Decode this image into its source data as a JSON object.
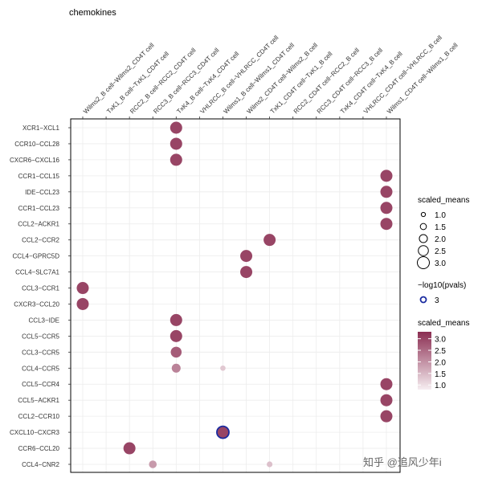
{
  "chart_data": {
    "type": "scatter",
    "title": "chemokines",
    "columns": [
      "Wilms2_B cell−Wilms2_CD4T cell",
      "TxK1_B cell−TxK1_CD4T cell",
      "RCC2_B cell−RCC2_CD4T cell",
      "RCC3_B cell−RCC3_CD4T cell",
      "TxK4_B cell−TxK4_CD4T cell",
      "VHLRCC_B cell−VHLRCC_CD4T cell",
      "Wilms1_B cell−Wilms1_CD4T cell",
      "Wilms2_CD4T cell−Wilms2_B cell",
      "TxK1_CD4T cell−TxK1_B cell",
      "RCC2_CD4T cell−RCC2_B cell",
      "RCC3_CD4T cell−RCC3_B cell",
      "TxK4_CD4T cell−TxK4_B cell",
      "VHLRCC_CD4T cell−VHLRCC_B cell",
      "Wilms1_CD4T cell−Wilms1_B cell"
    ],
    "rows": [
      "XCR1−XCL1",
      "CCR10−CCL28",
      "CXCR6−CXCL16",
      "CCR1−CCL15",
      "IDE−CCL23",
      "CCR1−CCL23",
      "CCL2−ACKR1",
      "CCL2−CCR2",
      "CCL4−GPRC5D",
      "CCL4−SLC7A1",
      "CCL3−CCR1",
      "CXCR3−CCL20",
      "CCL3−IDE",
      "CCL5−CCR5",
      "CCL3−CCR5",
      "CCL4−CCR5",
      "CCL5−CCR4",
      "CCL5−ACKR1",
      "CCL2−CCR10",
      "CXCL10−CXCR3",
      "CCR6−CCL20",
      "CCL4−CNR2"
    ],
    "points": [
      {
        "row": 0,
        "col": 4,
        "scaled_means": 3.0
      },
      {
        "row": 1,
        "col": 4,
        "scaled_means": 3.0
      },
      {
        "row": 2,
        "col": 4,
        "scaled_means": 3.0
      },
      {
        "row": 3,
        "col": 13,
        "scaled_means": 3.0
      },
      {
        "row": 4,
        "col": 13,
        "scaled_means": 3.0
      },
      {
        "row": 5,
        "col": 13,
        "scaled_means": 3.0
      },
      {
        "row": 6,
        "col": 13,
        "scaled_means": 3.0
      },
      {
        "row": 7,
        "col": 8,
        "scaled_means": 3.0
      },
      {
        "row": 8,
        "col": 7,
        "scaled_means": 3.0
      },
      {
        "row": 9,
        "col": 7,
        "scaled_means": 3.0
      },
      {
        "row": 10,
        "col": 0,
        "scaled_means": 3.0
      },
      {
        "row": 11,
        "col": 0,
        "scaled_means": 3.0
      },
      {
        "row": 12,
        "col": 4,
        "scaled_means": 3.0
      },
      {
        "row": 13,
        "col": 4,
        "scaled_means": 3.0
      },
      {
        "row": 14,
        "col": 4,
        "scaled_means": 2.7
      },
      {
        "row": 15,
        "col": 4,
        "scaled_means": 2.2
      },
      {
        "row": 15,
        "col": 6,
        "scaled_means": 1.3
      },
      {
        "row": 16,
        "col": 13,
        "scaled_means": 3.0
      },
      {
        "row": 17,
        "col": 13,
        "scaled_means": 3.0
      },
      {
        "row": 18,
        "col": 13,
        "scaled_means": 3.0
      },
      {
        "row": 19,
        "col": 6,
        "scaled_means": 3.0,
        "neg_log10_pvals": 3
      },
      {
        "row": 20,
        "col": 2,
        "scaled_means": 3.0
      },
      {
        "row": 21,
        "col": 3,
        "scaled_means": 1.9
      },
      {
        "row": 21,
        "col": 8,
        "scaled_means": 1.4
      }
    ],
    "legend_size": {
      "title": "scaled_means",
      "values": [
        "1.0",
        "1.5",
        "2.0",
        "2.5",
        "3.0"
      ]
    },
    "legend_pval": {
      "title": "−log10(pvals)",
      "values": [
        "3"
      ]
    },
    "legend_color": {
      "title": "scaled_means",
      "ticks": [
        "3.0",
        "2.5",
        "2.0",
        "1.5",
        "1.0"
      ],
      "range": [
        0.8,
        3.3
      ]
    },
    "colors": {
      "high": "#8b2e52",
      "low": "#f6eef1",
      "pval_ring": "#1a2ba0",
      "grid": "#ececec"
    },
    "watermark": "知乎 @追风少年i"
  }
}
